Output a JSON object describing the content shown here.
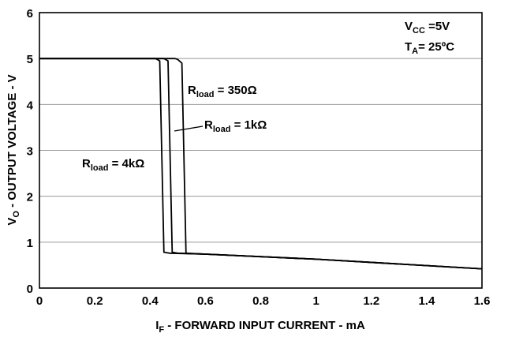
{
  "chart_data": {
    "type": "line",
    "xlabel": {
      "main": "I",
      "sub": "F",
      "rest": " - FORWARD INPUT CURRENT - mA"
    },
    "ylabel": {
      "main": "V",
      "sub": "O",
      "rest": " - OUTPUT VOLTAGE - V"
    },
    "xlim": [
      0,
      1.6
    ],
    "ylim": [
      0,
      6
    ],
    "xticks": [
      "0",
      "0.2",
      "0.4",
      "0.6",
      "0.8",
      "1",
      "1.2",
      "1.4",
      "1.6"
    ],
    "yticks": [
      "0",
      "1",
      "2",
      "3",
      "4",
      "5",
      "6"
    ],
    "grid": "horizontal",
    "conditions": [
      {
        "main": "V",
        "sub": "CC",
        "rest": " =5V"
      },
      {
        "main": "T",
        "sub": "A",
        "rest": "= 25ºC"
      }
    ],
    "series": [
      {
        "name": {
          "main": "R",
          "sub": "load",
          "rest": " = 4kΩ"
        },
        "x": [
          0,
          0.42,
          0.435,
          0.45,
          0.47,
          0.6,
          1.0,
          1.6
        ],
        "y": [
          5,
          5,
          4.95,
          0.78,
          0.76,
          0.74,
          0.63,
          0.42
        ]
      },
      {
        "name": {
          "main": "R",
          "sub": "load",
          "rest": " = 1kΩ"
        },
        "x": [
          0,
          0.45,
          0.465,
          0.48,
          0.5,
          0.6,
          1.0,
          1.6
        ],
        "y": [
          5,
          5,
          4.95,
          0.78,
          0.76,
          0.74,
          0.63,
          0.42
        ]
      },
      {
        "name": {
          "main": "R",
          "sub": "load",
          "rest": " = 350Ω"
        },
        "x": [
          0,
          0.47,
          0.49,
          0.5,
          0.515,
          0.53,
          0.6,
          1.0,
          1.6
        ],
        "y": [
          5,
          5,
          5,
          4.98,
          4.9,
          0.76,
          0.74,
          0.63,
          0.42
        ]
      }
    ]
  }
}
